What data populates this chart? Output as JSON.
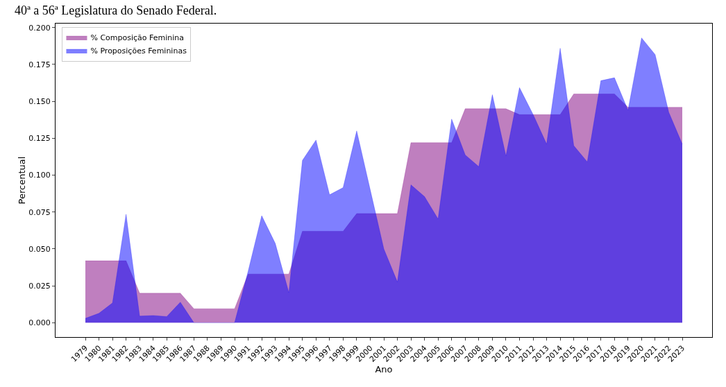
{
  "chart_data": {
    "type": "area",
    "title": "40ª a 56ª Legislatura do Senado Federal.",
    "xlabel": "Ano",
    "ylabel": "Percentual",
    "x": [
      1979,
      1980,
      1981,
      1982,
      1983,
      1984,
      1985,
      1986,
      1987,
      1988,
      1989,
      1990,
      1991,
      1992,
      1993,
      1994,
      1995,
      1996,
      1997,
      1998,
      1999,
      2000,
      2001,
      2002,
      2003,
      2004,
      2005,
      2006,
      2007,
      2008,
      2009,
      2010,
      2011,
      2012,
      2013,
      2014,
      2015,
      2016,
      2017,
      2018,
      2019,
      2020,
      2021,
      2022,
      2023
    ],
    "series": [
      {
        "name": "% Composição Feminina",
        "color": "#800080",
        "values": [
          0.042,
          0.042,
          0.042,
          0.042,
          0.02,
          0.02,
          0.02,
          0.02,
          0.0095,
          0.0095,
          0.0095,
          0.0095,
          0.033,
          0.033,
          0.033,
          0.033,
          0.062,
          0.062,
          0.062,
          0.062,
          0.074,
          0.074,
          0.074,
          0.074,
          0.122,
          0.122,
          0.122,
          0.122,
          0.145,
          0.145,
          0.145,
          0.145,
          0.141,
          0.141,
          0.141,
          0.141,
          0.155,
          0.155,
          0.155,
          0.155,
          0.146,
          0.146,
          0.146,
          0.146,
          0.146
        ]
      },
      {
        "name": "% Proposições Femininas",
        "color": "#0000ff",
        "values": [
          0.003,
          0.0064,
          0.0134,
          0.0735,
          0.0045,
          0.0049,
          0.0042,
          0.0139,
          0,
          0,
          0,
          0,
          0.035,
          0.0725,
          0.0537,
          0.0204,
          0.11,
          0.1238,
          0.0867,
          0.0916,
          0.13,
          0.09,
          0.05,
          0.0276,
          0.0934,
          0.0855,
          0.0703,
          0.138,
          0.1137,
          0.1058,
          0.1545,
          0.113,
          0.1593,
          0.1412,
          0.121,
          0.186,
          0.12,
          0.109,
          0.164,
          0.166,
          0.144,
          0.193,
          0.1817,
          0.1427,
          0.121
        ]
      }
    ],
    "xlim": [
      1976.8,
      2025.2
    ],
    "xticks": [
      1979,
      1980,
      1981,
      1982,
      1983,
      1984,
      1985,
      1986,
      1987,
      1988,
      1989,
      1990,
      1991,
      1992,
      1993,
      1994,
      1995,
      1996,
      1997,
      1998,
      1999,
      2000,
      2001,
      2002,
      2003,
      2004,
      2005,
      2006,
      2007,
      2008,
      2009,
      2010,
      2011,
      2012,
      2013,
      2014,
      2015,
      2016,
      2017,
      2018,
      2019,
      2020,
      2021,
      2022,
      2023
    ],
    "ylim": [
      -0.0097,
      0.2027
    ],
    "yticks": [
      {
        "value": 0,
        "label": "0.000"
      },
      {
        "value": 0.025,
        "label": "0.025"
      },
      {
        "value": 0.05,
        "label": "0.050"
      },
      {
        "value": 0.075,
        "label": "0.075"
      },
      {
        "value": 0.1,
        "label": "0.100"
      },
      {
        "value": 0.125,
        "label": "0.125"
      },
      {
        "value": 0.15,
        "label": "0.150"
      },
      {
        "value": 0.175,
        "label": "0.175"
      },
      {
        "value": 0.2,
        "label": "0.200"
      }
    ],
    "legend": "top left",
    "grid": false
  }
}
